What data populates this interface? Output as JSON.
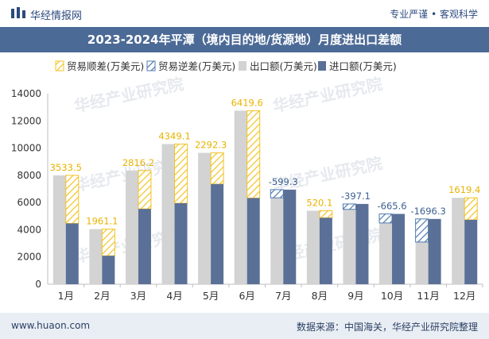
{
  "header": {
    "site_name": "华经情报网",
    "slogan": "专业严谨 • 客观科学"
  },
  "title": "2023-2024年平潭（境内目的地/货源地）月度进出口差额",
  "footer": {
    "url": "www.huaon.com",
    "source": "数据来源：中国海关，华经产业研究院整理"
  },
  "watermark": "华经产业研究院",
  "colors": {
    "title_bg": "#4c6a96",
    "export": "#d3d3d3",
    "import": "#5b7097",
    "surplus": "#f3c322",
    "deficit": "#4f7bb0",
    "surplus_label": "#e8b300",
    "deficit_label": "#3d5f91"
  },
  "chart_data": {
    "type": "bar",
    "categories": [
      "1月",
      "2月",
      "3月",
      "4月",
      "5月",
      "6月",
      "7月",
      "8月",
      "9月",
      "10月",
      "11月",
      "12月"
    ],
    "series": [
      {
        "name": "出口额(万美元)",
        "values": [
          8000,
          4050,
          8350,
          10300,
          9650,
          12750,
          6350,
          5400,
          5500,
          4500,
          3100,
          6350
        ]
      },
      {
        "name": "进口额(万美元)",
        "values": [
          4466,
          2089,
          5534,
          5951,
          7358,
          6330,
          6949,
          4880,
          5897,
          5166,
          4796,
          4731
        ]
      }
    ],
    "balance": {
      "surplus_name": "贸易顺差(万美元)",
      "deficit_name": "贸易逆差(万美元)",
      "values": [
        3533.5,
        1961.1,
        2816.2,
        4349.1,
        2292.3,
        6419.6,
        -599.3,
        520.1,
        -397.1,
        -665.6,
        -1696.3,
        1619.4
      ],
      "labels": [
        "3533.5",
        "1961.1",
        "2816.2",
        "4349.1",
        "2292.3",
        "6419.6",
        "-599.3",
        "520.1",
        "-397.1",
        "-665.6",
        "-1696.3",
        "1619.4"
      ]
    },
    "y_ticks": [
      "0",
      "2000",
      "4000",
      "6000",
      "8000",
      "10000",
      "12000",
      "14000"
    ],
    "ylim": [
      0,
      14000
    ],
    "grid": false,
    "legend_position": "top"
  }
}
